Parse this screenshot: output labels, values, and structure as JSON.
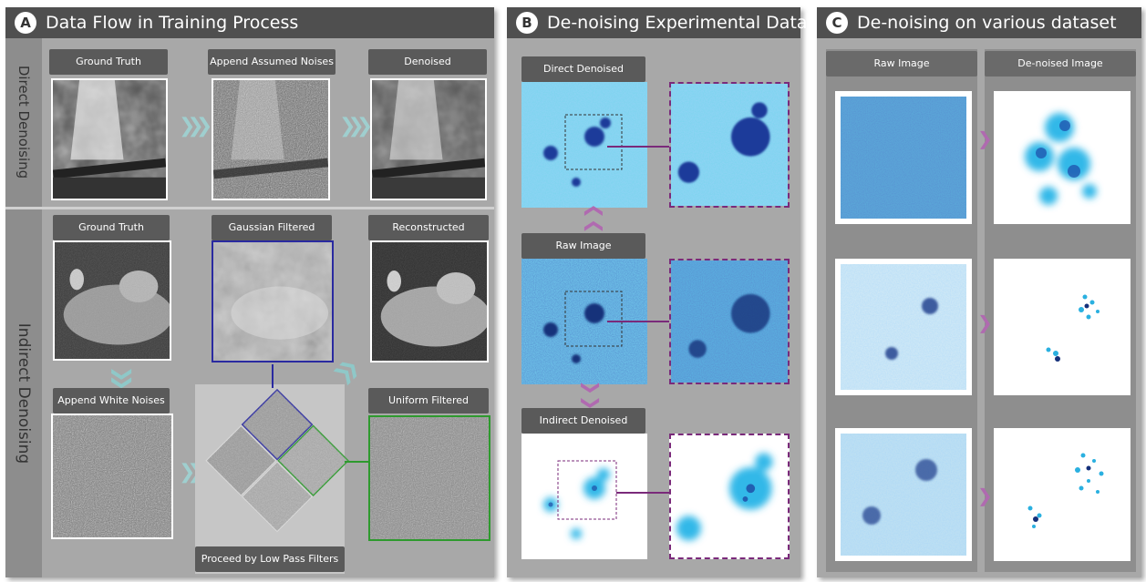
{
  "panelA": {
    "badge": "A",
    "title": "Data Flow in Training Process",
    "section_direct": "Direct Denoising",
    "section_indirect": "Indirect Denoising",
    "direct_labels": [
      "Ground Truth",
      "Append Assumed Noises",
      "Denoised"
    ],
    "indirect_labels": [
      "Ground Truth",
      "Gaussian Filtered",
      "Reconstructed"
    ],
    "white_noise_label": "Append White Noises",
    "uniform_label": "Uniform Filtered",
    "lowpass_label": "Proceed by Low Pass Filters"
  },
  "panelB": {
    "badge": "B",
    "title": "De-noising Experimental Data",
    "labels": [
      "Direct Denoised",
      "Raw Image",
      "Indirect Denoised"
    ]
  },
  "panelC": {
    "badge": "C",
    "title": "De-noising  on various dataset",
    "col_raw": "Raw Image",
    "col_denoised": "De-noised Image"
  },
  "colors": {
    "panel_bg": "#a8a8a8",
    "title_bg": "#4f4f4f",
    "label_bg": "#5a5a5a",
    "blue_frame": "#2a2aa0",
    "green_frame": "#2e9a2e",
    "purple_dash": "#7a2a7a"
  }
}
